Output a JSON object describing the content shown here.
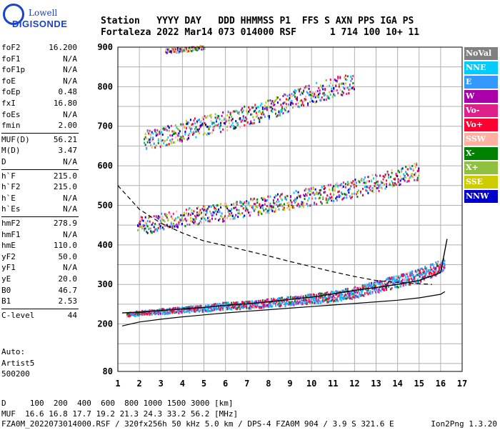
{
  "logo": {
    "line1": "Lowell",
    "line2": "DIGISONDE"
  },
  "header": {
    "line1": "Station   YYYY DAY   DDD HHMMSS P1  FFS S AXN PPS IGA PS",
    "line2": "Fortaleza 2022 Mar14 073 014000 RSF      1 714 100 10+ 11"
  },
  "params": [
    {
      "name": "foF2",
      "value": "16.200"
    },
    {
      "name": "foF1",
      "value": "N/A"
    },
    {
      "name": "foF1p",
      "value": "N/A"
    },
    {
      "name": "foE",
      "value": "N/A"
    },
    {
      "name": "foEp",
      "value": "0.48"
    },
    {
      "name": "fxI",
      "value": "16.80"
    },
    {
      "name": "foEs",
      "value": "N/A"
    },
    {
      "name": "fmin",
      "value": "2.00"
    },
    {
      "name": "MUF(D)",
      "value": "56.21"
    },
    {
      "name": "M(D)",
      "value": "3.47"
    },
    {
      "name": "D",
      "value": "N/A"
    },
    {
      "name": "h`F",
      "value": "215.0"
    },
    {
      "name": "h`F2",
      "value": "215.0"
    },
    {
      "name": "h`E",
      "value": "N/A"
    },
    {
      "name": "h`Es",
      "value": "N/A"
    },
    {
      "name": "hmF2",
      "value": "278.9"
    },
    {
      "name": "hmF1",
      "value": "N/A"
    },
    {
      "name": "hmE",
      "value": "110.0"
    },
    {
      "name": "yF2",
      "value": "50.0"
    },
    {
      "name": "yF1",
      "value": "N/A"
    },
    {
      "name": "yE",
      "value": "20.0"
    },
    {
      "name": "B0",
      "value": "46.7"
    },
    {
      "name": "B1",
      "value": "2.53"
    },
    {
      "name": "C-level",
      "value": "44"
    }
  ],
  "auto_block": {
    "line1": "Auto:",
    "line2": "Artist5",
    "line3": "500200"
  },
  "legend": [
    {
      "label": "NoVal",
      "color": "#808080"
    },
    {
      "label": "NNE",
      "color": "#00ccff"
    },
    {
      "label": "E",
      "color": "#3399ff"
    },
    {
      "label": "W",
      "color": "#aa00aa"
    },
    {
      "label": "Vo-",
      "color": "#e0208a"
    },
    {
      "label": "Vo+",
      "color": "#ff0033"
    },
    {
      "label": "SSW",
      "color": "#ffb0a0"
    },
    {
      "label": "X-",
      "color": "#008000"
    },
    {
      "label": "X+",
      "color": "#90c040"
    },
    {
      "label": "SSE",
      "color": "#cccc00"
    },
    {
      "label": "NNW",
      "color": "#0000cc"
    }
  ],
  "footer": {
    "line1": "D     100  200  400  600  800 1000 1500 3000 [km]",
    "line2": "MUF  16.6 16.8 17.7 19.2 21.3 24.3 33.2 56.2 [MHz]",
    "line3": "FZA0M_2022073014000.RSF / 320fx256h 50 kHz 5.0 km / DPS-4 FZA0M 904 / 3.9 S 321.6 E",
    "version": "Ion2Png 1.3.20"
  },
  "chart_data": {
    "type": "scatter",
    "title": "",
    "xlabel": "",
    "ylabel": "",
    "xlim": [
      1,
      17
    ],
    "ylim": [
      80,
      900
    ],
    "x_ticks": [
      1,
      2,
      3,
      4,
      5,
      6,
      7,
      8,
      9,
      10,
      11,
      12,
      13,
      14,
      15,
      16,
      17
    ],
    "y_ticks": [
      80,
      200,
      300,
      400,
      500,
      600,
      700,
      800,
      900
    ],
    "grid": true,
    "legend_position": "right",
    "echo_bands": [
      {
        "name": "F2 O-trace",
        "x": [
          1.4,
          2,
          3,
          4,
          5,
          6,
          7,
          8,
          9,
          10,
          11,
          12,
          13,
          14,
          15,
          16.2
        ],
        "y": [
          225,
          230,
          234,
          238,
          242,
          248,
          250,
          255,
          260,
          266,
          272,
          282,
          296,
          310,
          325,
          352
        ]
      },
      {
        "name": "2nd hop",
        "x": [
          1.9,
          3,
          4,
          5,
          6,
          7,
          8,
          9,
          10,
          11,
          12,
          13,
          14,
          15
        ],
        "y": [
          450,
          460,
          470,
          480,
          485,
          495,
          505,
          515,
          525,
          535,
          545,
          560,
          575,
          590
        ]
      },
      {
        "name": "3rd hop",
        "x": [
          2.2,
          3,
          4,
          5,
          6,
          7,
          8,
          9,
          10,
          11,
          12
        ],
        "y": [
          665,
          675,
          690,
          705,
          715,
          730,
          745,
          765,
          785,
          800,
          815
        ]
      },
      {
        "name": "4th hop",
        "x": [
          3.2,
          4,
          5
        ],
        "y": [
          892,
          895,
          900
        ]
      }
    ],
    "lines": [
      {
        "name": "solid",
        "x": [
          1.2,
          2,
          3,
          4,
          5,
          6,
          7,
          8,
          9,
          10,
          11,
          12,
          13,
          14,
          15,
          16,
          16.2
        ],
        "y": [
          195,
          205,
          212,
          218,
          223,
          228,
          232,
          236,
          240,
          244,
          248,
          252,
          256,
          260,
          266,
          275,
          282
        ]
      },
      {
        "name": "dashed",
        "x": [
          1,
          1.5,
          2,
          3,
          4,
          5,
          6,
          7,
          8,
          9,
          10,
          11,
          12,
          13,
          14,
          15,
          15.6
        ],
        "y": [
          550,
          520,
          490,
          455,
          430,
          410,
          398,
          385,
          372,
          358,
          345,
          332,
          320,
          310,
          305,
          302,
          300
        ]
      },
      {
        "name": "profile",
        "x": [
          1.2,
          2,
          3,
          4,
          5,
          6,
          7,
          8,
          9,
          10,
          11,
          12,
          13,
          14,
          15,
          16,
          16.3
        ],
        "y": [
          228,
          230,
          234,
          238,
          242,
          247,
          251,
          256,
          262,
          268,
          276,
          285,
          292,
          300,
          310,
          330,
          415
        ]
      }
    ]
  }
}
